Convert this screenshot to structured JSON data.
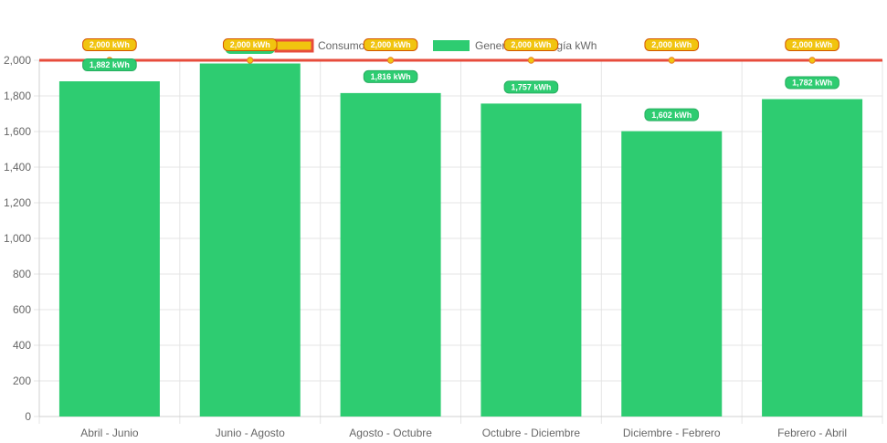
{
  "chart_data": {
    "type": "bar",
    "categories": [
      "Abril - Junio",
      "Junio - Agosto",
      "Agosto - Octubre",
      "Octubre - Diciembre",
      "Diciembre - Febrero",
      "Febrero - Abril"
    ],
    "series": [
      {
        "name": "Consumo kWh",
        "type": "line",
        "color": "#e74c3c",
        "fill_color": "#f1c40f",
        "values": [
          2000,
          2000,
          2000,
          2000,
          2000,
          2000
        ],
        "data_labels": [
          "2,000 kWh",
          "2,000 kWh",
          "2,000 kWh",
          "2,000 kWh",
          "2,000 kWh",
          "2,000 kWh"
        ]
      },
      {
        "name": "Generación energía kWh",
        "type": "bar",
        "color": "#2ecc71",
        "values": [
          1882,
          1982,
          1816,
          1757,
          1602,
          1782
        ],
        "data_labels": [
          "1,882 kWh",
          "",
          "1,816 kWh",
          "1,757 kWh",
          "1,602 kWh",
          "1,782 kWh"
        ]
      }
    ],
    "ylim": [
      0,
      2000
    ],
    "yticks": [
      0,
      200,
      400,
      600,
      800,
      1000,
      1200,
      1400,
      1600,
      1800,
      2000
    ],
    "ytick_labels": [
      "0",
      "200",
      "400",
      "600",
      "800",
      "1,000",
      "1,200",
      "1,400",
      "1,600",
      "1,800",
      "2,000"
    ],
    "grid": true,
    "legend_position": "top-center"
  }
}
